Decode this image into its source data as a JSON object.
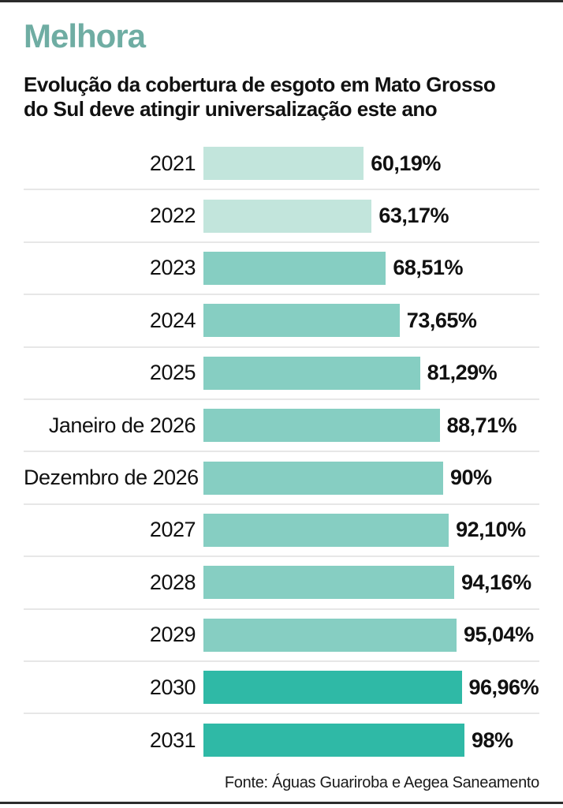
{
  "header": {
    "title": "Melhora",
    "subtitle_line1": "Evolução da cobertura de esgoto em Mato Grosso",
    "subtitle_line2": "do Sul deve atingir universalização este ano"
  },
  "footer": {
    "source": "Fonte: Águas Guariroba e Aegea Saneamento"
  },
  "colors": {
    "title": "#6fada3",
    "bar_light": "#c2e5dc",
    "bar_medium": "#86cec2",
    "bar_dark": "#2fb9a6",
    "divider": "#e7e7e7",
    "rule": "#2b2b2b"
  },
  "chart_data": {
    "type": "bar",
    "orientation": "horizontal",
    "title": "Melhora",
    "subtitle": "Evolução da cobertura de esgoto em Mato Grosso do Sul deve atingir universalização este ano",
    "categories": [
      "2021",
      "2022",
      "2023",
      "2024",
      "2025",
      "Janeiro de 2026",
      "Dezembro de 2026",
      "2027",
      "2028",
      "2029",
      "2030",
      "2031"
    ],
    "values": [
      60.19,
      63.17,
      68.51,
      73.65,
      81.29,
      88.71,
      90,
      92.1,
      94.16,
      95.04,
      96.96,
      98
    ],
    "value_labels": [
      "60,19%",
      "63,17%",
      "68,51%",
      "73,65%",
      "81,29%",
      "88,71%",
      "90%",
      "92,10%",
      "94,16%",
      "95,04%",
      "96,96%",
      "98%"
    ],
    "bar_tiers": [
      "light",
      "light",
      "medium",
      "medium",
      "medium",
      "medium",
      "medium",
      "medium",
      "medium",
      "medium",
      "dark",
      "dark"
    ],
    "xlim": [
      0,
      98
    ],
    "xlabel": "",
    "ylabel": "",
    "grid": false,
    "legend": false,
    "value_labels_position": "right-of-bar",
    "source": "Fonte: Águas Guariroba e Aegea Saneamento"
  }
}
